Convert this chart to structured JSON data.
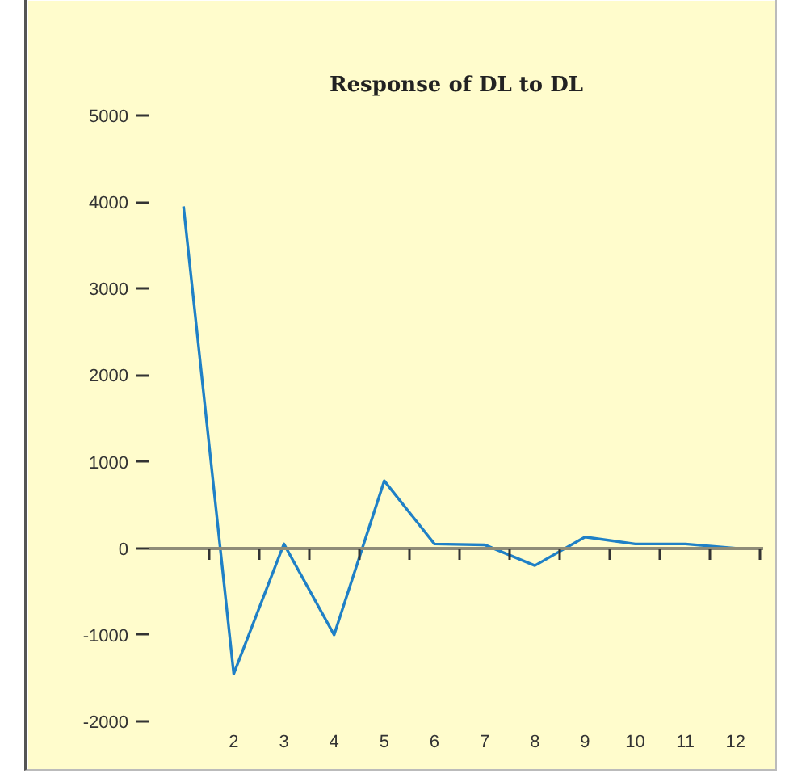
{
  "chart_data": {
    "type": "line",
    "title": "Response of DL to DL",
    "categories": [
      null,
      "2",
      "3",
      "4",
      "5",
      "6",
      "7",
      "8",
      "9",
      "10",
      "11",
      "12"
    ],
    "series": [
      {
        "color": "#1f80c6",
        "values": [
          3950,
          -1450,
          50,
          -1000,
          780,
          50,
          40,
          -200,
          130,
          50,
          50,
          0
        ]
      }
    ],
    "ylim": [
      -2000,
      5000
    ],
    "yticks": [
      -2000,
      -1000,
      0,
      1000,
      2000,
      3000,
      4000,
      5000
    ],
    "line_style": "solid"
  }
}
